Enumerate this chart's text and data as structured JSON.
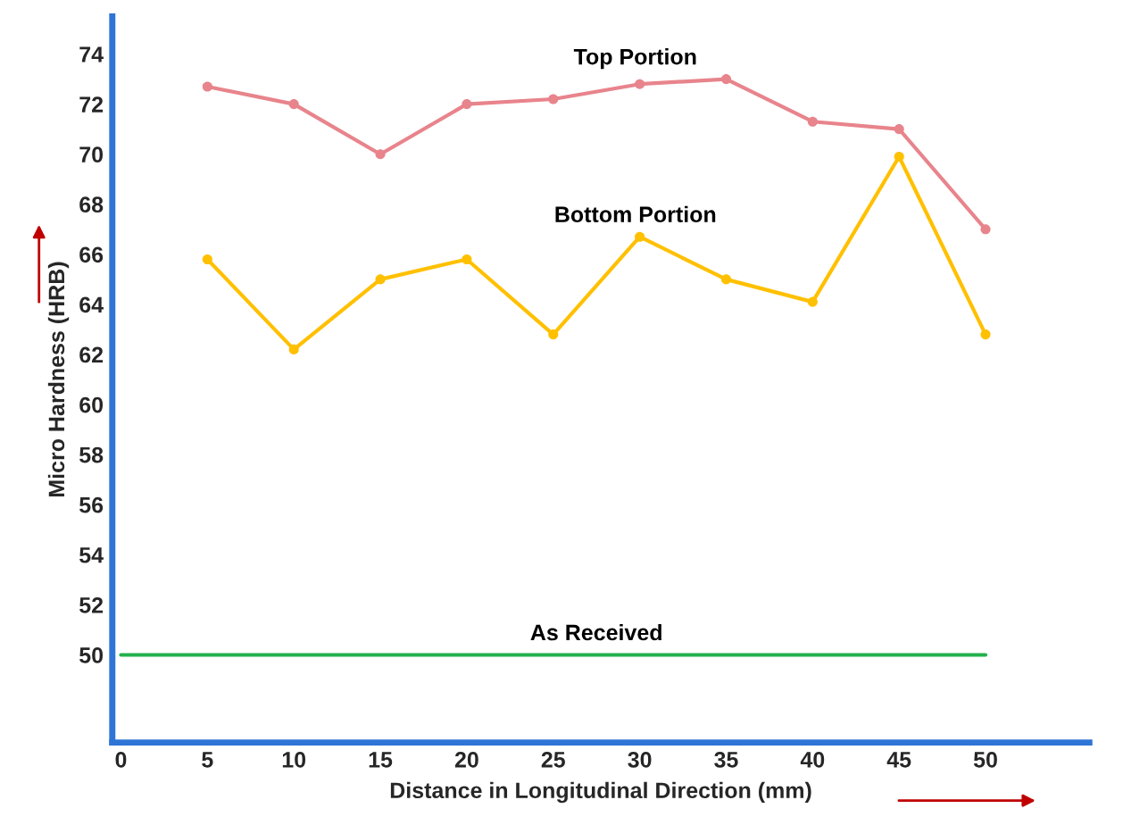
{
  "chart_data": {
    "type": "line",
    "xlabel": "Distance in Longitudinal Direction (mm)",
    "ylabel": "Micro Hardness (HRB)",
    "x": [
      5,
      10,
      15,
      20,
      25,
      30,
      35,
      40,
      45,
      50
    ],
    "series": [
      {
        "name": "Top Portion",
        "color": "#e8848c",
        "values": [
          72.7,
          72.0,
          70.0,
          72.0,
          72.2,
          72.8,
          73.0,
          71.3,
          71.0,
          67.0
        ]
      },
      {
        "name": "Bottom Portion",
        "color": "#ffc000",
        "values": [
          65.8,
          62.2,
          65.0,
          65.8,
          62.8,
          66.7,
          65.0,
          64.1,
          69.9,
          62.8
        ]
      },
      {
        "name": "As Received",
        "color": "#22b14c",
        "x": [
          0,
          50
        ],
        "values": [
          50,
          50
        ],
        "marker": "none"
      }
    ],
    "xlim": [
      -0.5,
      56
    ],
    "ylim": [
      46.5,
      75.5
    ],
    "xticks": [
      0,
      5,
      10,
      15,
      20,
      25,
      30,
      35,
      40,
      45,
      50
    ],
    "yticks": [
      50,
      52,
      54,
      56,
      58,
      60,
      62,
      64,
      66,
      68,
      70,
      72,
      74
    ],
    "grid": false,
    "legend": false,
    "marker": "circle",
    "line_style": "solid"
  }
}
